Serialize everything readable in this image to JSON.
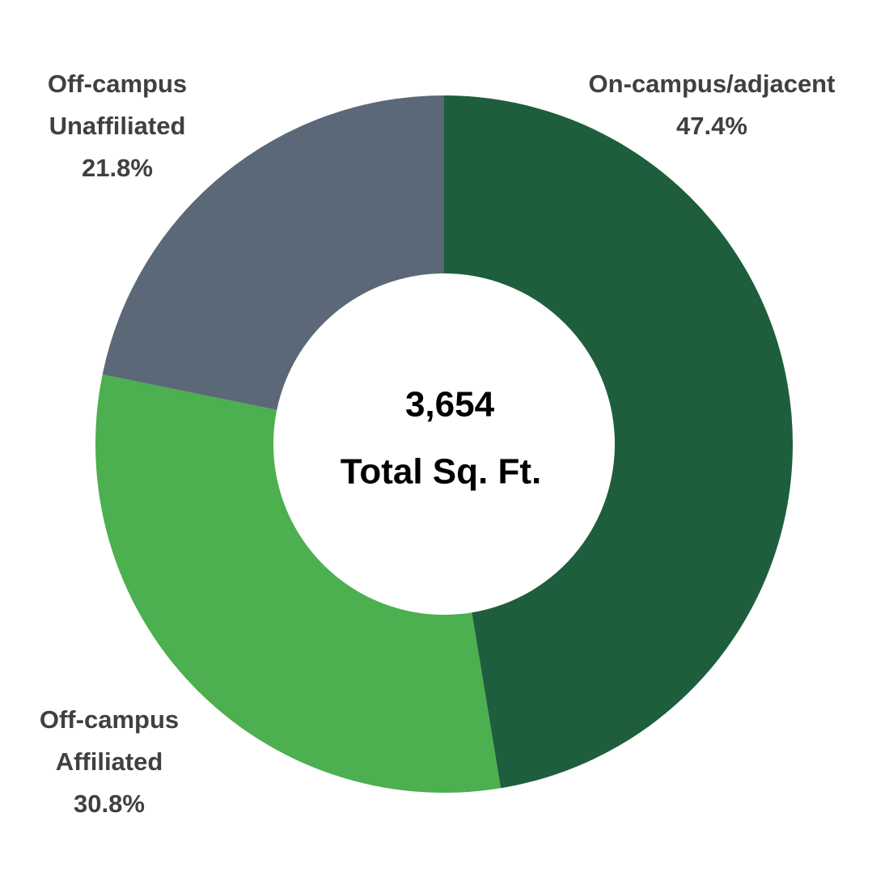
{
  "chart_data": {
    "type": "donut",
    "categories": [
      "On-campus/adjacent",
      "Off-campus Affiliated",
      "Off-campus Unaffiliated"
    ],
    "values": [
      47.4,
      30.8,
      21.8
    ],
    "value_labels": [
      "47.4%",
      "30.8%",
      "21.8%"
    ],
    "colors": [
      "#1e5e3c",
      "#4caf50",
      "#5b6877"
    ],
    "center_text": [
      "3,654",
      "Total Sq. Ft."
    ]
  }
}
